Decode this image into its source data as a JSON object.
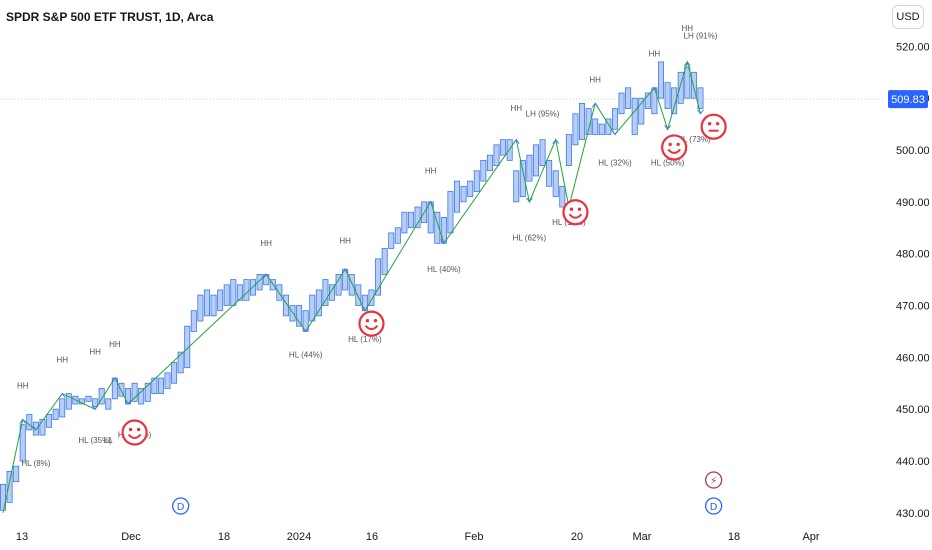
{
  "header": {
    "title": "SPDR S&P 500 ETF TRUST, 1D, Arca"
  },
  "currency_button": "USD",
  "colors": {
    "bar_fill": "#b7cdf7",
    "bar_stroke": "#3d7ae3",
    "zigzag": "#22a33a",
    "pivot_arrow": "#3d7ae3",
    "smiley": "#e8323c",
    "price_tag": "#2962ff",
    "event_dividend": "#2962ff",
    "event_earnings": "#a33a5b"
  },
  "icons": {
    "smiley": "smiley-face-icon",
    "dividend": "dividend-d-icon",
    "earnings": "lightning-icon"
  },
  "chart_data": {
    "type": "bar",
    "title": "SPDR S&P 500 ETF TRUST, 1D, Arca",
    "ylim": [
      429,
      522
    ],
    "grid": false,
    "y_ticks": [
      "430.00",
      "440.00",
      "450.00",
      "460.00",
      "470.00",
      "480.00",
      "490.00",
      "500.00",
      "510.00",
      "520.00"
    ],
    "x_ticks": [
      "13",
      "Dec",
      "18",
      "2024",
      "16",
      "Feb",
      "20",
      "Mar",
      "18",
      "Apr"
    ],
    "last_price": "509.83",
    "bars": [
      {
        "low": 430.5,
        "high": 435.5
      },
      {
        "low": 432,
        "high": 438
      },
      {
        "low": 436,
        "high": 439
      },
      {
        "low": 440,
        "high": 447
      },
      {
        "low": 446,
        "high": 449
      },
      {
        "low": 445,
        "high": 447.5
      },
      {
        "low": 445,
        "high": 448
      },
      {
        "low": 446.5,
        "high": 449
      },
      {
        "low": 448,
        "high": 450
      },
      {
        "low": 448.5,
        "high": 452
      },
      {
        "low": 450,
        "high": 453
      },
      {
        "low": 451,
        "high": 452.5
      },
      {
        "low": 451,
        "high": 452
      },
      {
        "low": 451.5,
        "high": 452.5
      },
      {
        "low": 450.5,
        "high": 452
      },
      {
        "low": 451,
        "high": 454
      },
      {
        "low": 450,
        "high": 452
      },
      {
        "low": 452,
        "high": 456
      },
      {
        "low": 452.5,
        "high": 455
      },
      {
        "low": 451,
        "high": 454
      },
      {
        "low": 451.5,
        "high": 455
      },
      {
        "low": 451,
        "high": 454
      },
      {
        "low": 451.5,
        "high": 455
      },
      {
        "low": 453,
        "high": 456
      },
      {
        "low": 453,
        "high": 456
      },
      {
        "low": 454,
        "high": 457
      },
      {
        "low": 455,
        "high": 459
      },
      {
        "low": 457,
        "high": 461
      },
      {
        "low": 458,
        "high": 466
      },
      {
        "low": 465,
        "high": 469
      },
      {
        "low": 467,
        "high": 472
      },
      {
        "low": 468,
        "high": 473
      },
      {
        "low": 468,
        "high": 472
      },
      {
        "low": 469,
        "high": 473
      },
      {
        "low": 470,
        "high": 474
      },
      {
        "low": 470,
        "high": 475
      },
      {
        "low": 471,
        "high": 474
      },
      {
        "low": 471,
        "high": 475
      },
      {
        "low": 472,
        "high": 475
      },
      {
        "low": 473,
        "high": 476
      },
      {
        "low": 474,
        "high": 476
      },
      {
        "low": 473,
        "high": 475
      },
      {
        "low": 471,
        "high": 474
      },
      {
        "low": 468,
        "high": 472
      },
      {
        "low": 467,
        "high": 470
      },
      {
        "low": 466,
        "high": 470
      },
      {
        "low": 465,
        "high": 469
      },
      {
        "low": 467,
        "high": 472
      },
      {
        "low": 468,
        "high": 473
      },
      {
        "low": 470,
        "high": 475
      },
      {
        "low": 471,
        "high": 474
      },
      {
        "low": 472,
        "high": 476
      },
      {
        "low": 473,
        "high": 477
      },
      {
        "low": 472,
        "high": 476
      },
      {
        "low": 470,
        "high": 474
      },
      {
        "low": 469,
        "high": 472
      },
      {
        "low": 470,
        "high": 473
      },
      {
        "low": 472,
        "high": 479
      },
      {
        "low": 476,
        "high": 481
      },
      {
        "low": 481,
        "high": 484
      },
      {
        "low": 482,
        "high": 485
      },
      {
        "low": 484,
        "high": 488
      },
      {
        "low": 485,
        "high": 488
      },
      {
        "low": 485,
        "high": 489
      },
      {
        "low": 486,
        "high": 490
      },
      {
        "low": 484,
        "high": 490
      },
      {
        "low": 482,
        "high": 488
      },
      {
        "low": 482,
        "high": 487
      },
      {
        "low": 484,
        "high": 492
      },
      {
        "low": 488,
        "high": 494
      },
      {
        "low": 490,
        "high": 493
      },
      {
        "low": 491,
        "high": 494
      },
      {
        "low": 492,
        "high": 496
      },
      {
        "low": 494,
        "high": 498
      },
      {
        "low": 496,
        "high": 499
      },
      {
        "low": 497,
        "high": 501
      },
      {
        "low": 499,
        "high": 502
      },
      {
        "low": 498,
        "high": 502
      },
      {
        "low": 490,
        "high": 496
      },
      {
        "low": 491,
        "high": 498
      },
      {
        "low": 494,
        "high": 499
      },
      {
        "low": 495,
        "high": 501
      },
      {
        "low": 497,
        "high": 502
      },
      {
        "low": 493,
        "high": 498
      },
      {
        "low": 491,
        "high": 496
      },
      {
        "low": 489,
        "high": 493
      },
      {
        "low": 497,
        "high": 503
      },
      {
        "low": 501,
        "high": 507
      },
      {
        "low": 502,
        "high": 509
      },
      {
        "low": 503,
        "high": 508
      },
      {
        "low": 503,
        "high": 506
      },
      {
        "low": 503,
        "high": 505
      },
      {
        "low": 503,
        "high": 506
      },
      {
        "low": 504,
        "high": 508
      },
      {
        "low": 507,
        "high": 511
      },
      {
        "low": 508,
        "high": 512
      },
      {
        "low": 503,
        "high": 510
      },
      {
        "low": 505,
        "high": 510
      },
      {
        "low": 508,
        "high": 511
      },
      {
        "low": 507,
        "high": 512
      },
      {
        "low": 510,
        "high": 517
      },
      {
        "low": 508,
        "high": 513
      },
      {
        "low": 507,
        "high": 512
      },
      {
        "low": 509,
        "high": 515
      },
      {
        "low": 510,
        "high": 516
      },
      {
        "low": 510,
        "high": 515
      },
      {
        "low": 508,
        "high": 512
      }
    ],
    "zigzag": [
      {
        "i": 0,
        "p": 430
      },
      {
        "i": 3,
        "p": 448
      },
      {
        "i": 5,
        "p": 446
      },
      {
        "i": 9,
        "p": 453
      },
      {
        "i": 14,
        "p": 450
      },
      {
        "i": 17,
        "p": 456
      },
      {
        "i": 19,
        "p": 451
      },
      {
        "i": 40,
        "p": 476
      },
      {
        "i": 46,
        "p": 465
      },
      {
        "i": 52,
        "p": 477
      },
      {
        "i": 55,
        "p": 469
      },
      {
        "i": 65,
        "p": 490
      },
      {
        "i": 67,
        "p": 482
      },
      {
        "i": 78,
        "p": 502
      },
      {
        "i": 80,
        "p": 490
      },
      {
        "i": 84,
        "p": 502
      },
      {
        "i": 86,
        "p": 489
      },
      {
        "i": 90,
        "p": 509
      },
      {
        "i": 93,
        "p": 503
      },
      {
        "i": 99,
        "p": 512
      },
      {
        "i": 101,
        "p": 504
      },
      {
        "i": 104,
        "p": 517
      },
      {
        "i": 106,
        "p": 507
      }
    ],
    "annotations": [
      {
        "text": "HH",
        "i": 3,
        "p": 454
      },
      {
        "text": "HL (8%)",
        "i": 5,
        "p": 439
      },
      {
        "text": "HH",
        "i": 9,
        "p": 459
      },
      {
        "text": "HL (35%)",
        "i": 14,
        "p": 443.5
      },
      {
        "text": "LL",
        "i": 16,
        "p": 443.5
      },
      {
        "text": "HH",
        "i": 14,
        "p": 460.5
      },
      {
        "text": "HH",
        "i": 17,
        "p": 462
      },
      {
        "text": "HL (88%)",
        "i": 20,
        "p": 444.5
      },
      {
        "text": "HH",
        "i": 40,
        "p": 481.5
      },
      {
        "text": "HL (44%)",
        "i": 46,
        "p": 460
      },
      {
        "text": "HH",
        "i": 52,
        "p": 482
      },
      {
        "text": "HL (17%)",
        "i": 55,
        "p": 463
      },
      {
        "text": "HH",
        "i": 65,
        "p": 495.5
      },
      {
        "text": "HL (40%)",
        "i": 67,
        "p": 476.5
      },
      {
        "text": "HH",
        "i": 78,
        "p": 507.5
      },
      {
        "text": "LH (95%)",
        "i": 82,
        "p": 506.5
      },
      {
        "text": "HL (62%)",
        "i": 80,
        "p": 482.5
      },
      {
        "text": "HL (17%)",
        "i": 86,
        "p": 485.5
      },
      {
        "text": "HH",
        "i": 90,
        "p": 513
      },
      {
        "text": "HL (32%)",
        "i": 93,
        "p": 497
      },
      {
        "text": "HH",
        "i": 99,
        "p": 518
      },
      {
        "text": "HL (50%)",
        "i": 101,
        "p": 497
      },
      {
        "text": "HH",
        "i": 104,
        "p": 523
      },
      {
        "text": "LH (91%)",
        "i": 106,
        "p": 521.5
      },
      {
        "text": "HL (73%)",
        "i": 105,
        "p": 501.5
      }
    ],
    "smileys": [
      {
        "i": 20,
        "p": 445.5,
        "mood": "happy"
      },
      {
        "i": 56,
        "p": 466.5,
        "mood": "happy"
      },
      {
        "i": 87,
        "p": 488,
        "mood": "happy"
      },
      {
        "i": 102,
        "p": 500.5,
        "mood": "happy"
      },
      {
        "i": 108,
        "p": 504.5,
        "mood": "neutral"
      }
    ],
    "events": [
      {
        "type": "dividend",
        "label": "D",
        "i": 27
      },
      {
        "type": "dividend",
        "label": "D",
        "i": 108
      },
      {
        "type": "earnings",
        "label": "⚡",
        "i": 108
      }
    ]
  }
}
